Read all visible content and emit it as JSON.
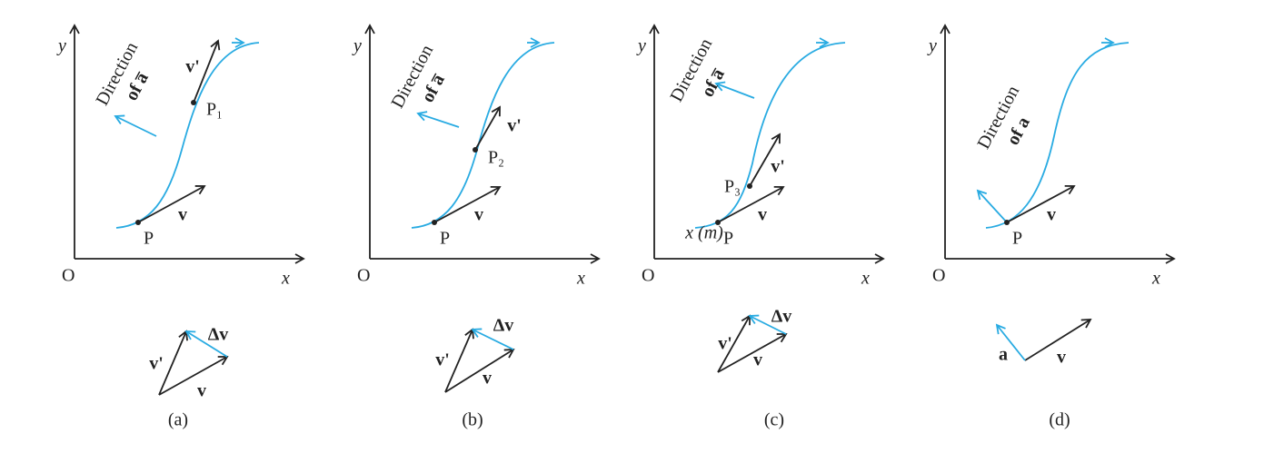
{
  "panels": [
    {
      "caption": "(a)",
      "y_label": "y",
      "x_label": "x",
      "origin": "O",
      "direction": "Direction",
      "direction_of": "of a̅",
      "point": "P",
      "point_v": "v",
      "second_point": "P₁",
      "second_v": "v'",
      "triangle_v": "v",
      "triangle_v_prime": "v'",
      "triangle_dv": "Δv"
    },
    {
      "caption": "(b)",
      "y_label": "y",
      "x_label": "x",
      "origin": "O",
      "direction": "Direction",
      "direction_of": "of a̅",
      "point": "P",
      "point_v": "v",
      "second_point": "P₂",
      "second_v": "v'",
      "triangle_v": "v",
      "triangle_v_prime": "v'",
      "triangle_dv": "Δv"
    },
    {
      "caption": "(c)",
      "y_label": "y",
      "x_label": "x",
      "origin": "O",
      "direction": "Direction",
      "direction_of": "of a̅",
      "point": "P",
      "point_v": "v",
      "second_point": "P₃",
      "second_v": "v'",
      "axis_note": "x (m)",
      "triangle_v": "v",
      "triangle_v_prime": "v'",
      "triangle_dv": "Δv"
    },
    {
      "caption": "(d)",
      "y_label": "y",
      "x_label": "x",
      "origin": "O",
      "direction": "Direction",
      "direction_of": "of a",
      "point": "P",
      "point_v": "v",
      "triangle_v": "v",
      "triangle_a": "a"
    }
  ]
}
